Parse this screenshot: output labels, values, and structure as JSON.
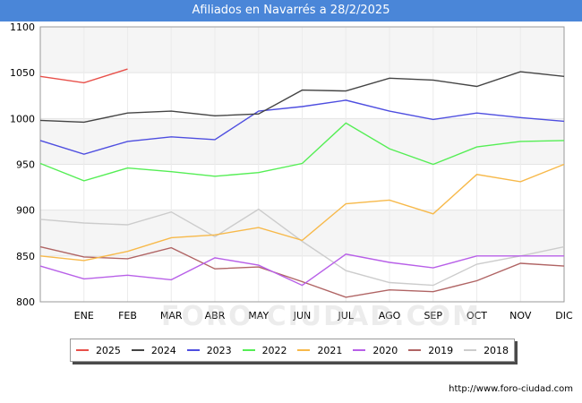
{
  "title": "Afiliados en Navarrés a 28/2/2025",
  "source": "http://www.foro-ciudad.com",
  "watermark": "FORO-CIUDAD.COM",
  "chart_data": {
    "type": "line",
    "title": "Afiliados en Navarrés a 28/2/2025",
    "categories": [
      "",
      "ENE",
      "FEB",
      "MAR",
      "ABR",
      "MAY",
      "JUN",
      "JUL",
      "AGO",
      "SEP",
      "OCT",
      "NOV",
      "DIC"
    ],
    "ylim": [
      800,
      1100
    ],
    "yticks": [
      800,
      850,
      900,
      950,
      1000,
      1050,
      1100
    ],
    "grid": true,
    "legend_position": "bottom",
    "series": [
      {
        "name": "2025",
        "color": "#e8504a",
        "values": [
          1046,
          1039,
          1054,
          null,
          null,
          null,
          null,
          null,
          null,
          null,
          null,
          null,
          null
        ]
      },
      {
        "name": "2024",
        "color": "#444444",
        "values": [
          998,
          996,
          1006,
          1008,
          1003,
          1005,
          1031,
          1030,
          1044,
          1042,
          1035,
          1051,
          1046
        ]
      },
      {
        "name": "2023",
        "color": "#4e4ee0",
        "values": [
          976,
          961,
          975,
          980,
          977,
          1008,
          1013,
          1020,
          1008,
          999,
          1006,
          1001,
          997
        ]
      },
      {
        "name": "2022",
        "color": "#55ee55",
        "values": [
          951,
          932,
          946,
          942,
          937,
          941,
          951,
          995,
          967,
          950,
          969,
          975,
          976
        ]
      },
      {
        "name": "2021",
        "color": "#f7b94a",
        "values": [
          850,
          845,
          855,
          870,
          873,
          881,
          867,
          907,
          911,
          896,
          939,
          931,
          950
        ]
      },
      {
        "name": "2020",
        "color": "#b860e8",
        "values": [
          839,
          825,
          829,
          824,
          848,
          840,
          818,
          852,
          843,
          837,
          850,
          850,
          850
        ]
      },
      {
        "name": "2019",
        "color": "#b06464",
        "values": [
          860,
          849,
          847,
          859,
          836,
          838,
          822,
          805,
          813,
          811,
          823,
          842,
          839
        ]
      },
      {
        "name": "2018",
        "color": "#cccccc",
        "values": [
          890,
          886,
          884,
          898,
          871,
          901,
          866,
          834,
          821,
          818,
          841,
          850,
          860
        ]
      }
    ]
  }
}
